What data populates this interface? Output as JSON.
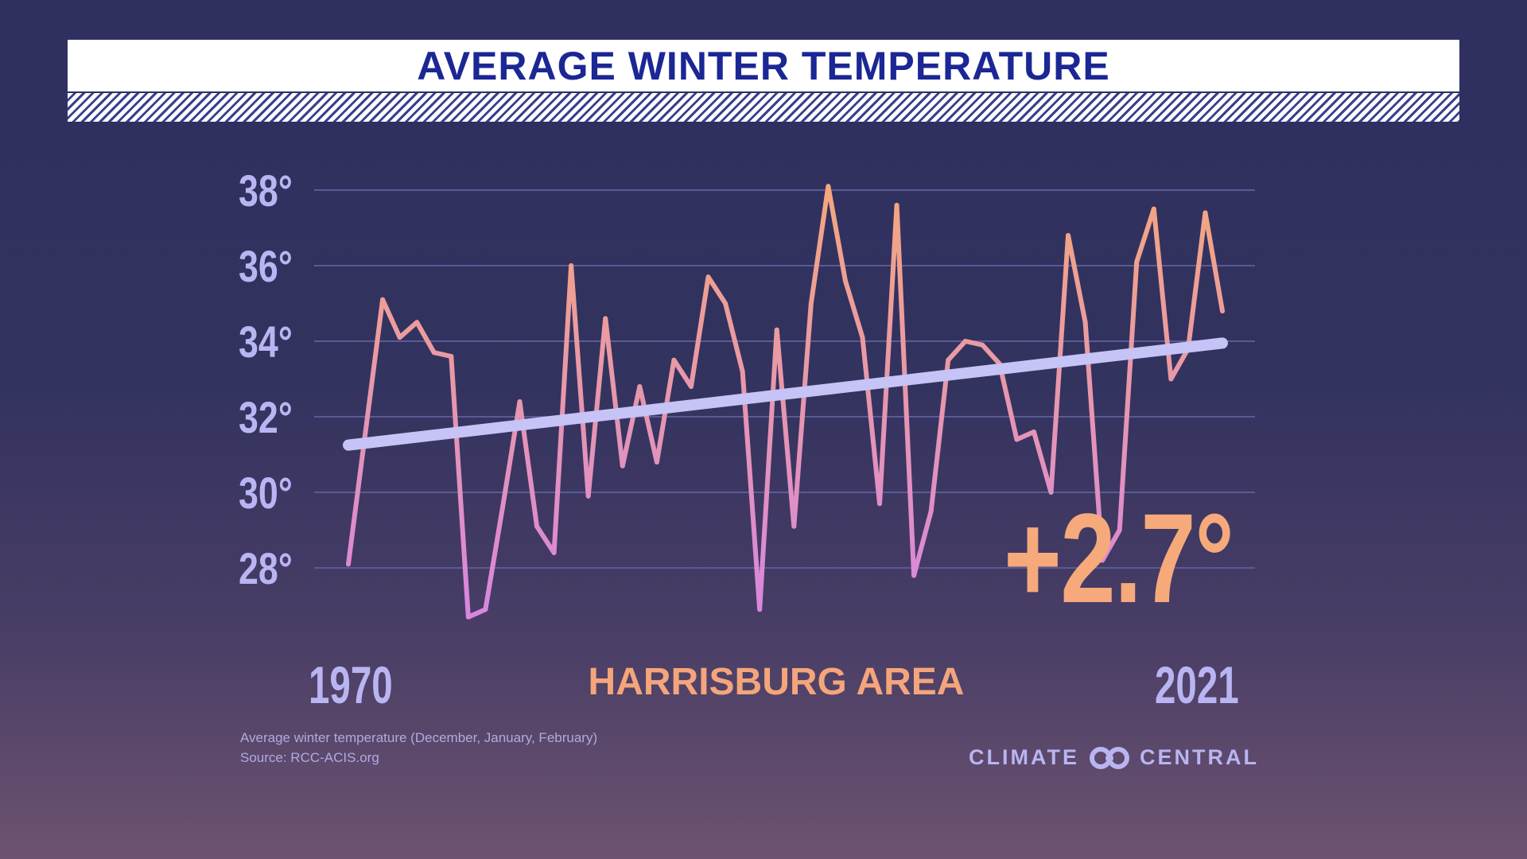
{
  "header": {
    "title": "AVERAGE WINTER TEMPERATURE"
  },
  "chart_data": {
    "type": "line",
    "title": "AVERAGE WINTER TEMPERATURE",
    "subtitle": "HARRISBURG AREA",
    "xlabel": "",
    "ylabel": "",
    "x_start_label": "1970",
    "x_end_label": "2021",
    "ylim": [
      28,
      38
    ],
    "y_ticks": [
      38,
      36,
      34,
      32,
      30,
      28
    ],
    "y_tick_labels": [
      "38°",
      "36°",
      "34°",
      "32°",
      "30°",
      "28°"
    ],
    "grid": true,
    "x": [
      1970,
      1971,
      1972,
      1973,
      1974,
      1975,
      1976,
      1977,
      1978,
      1979,
      1980,
      1981,
      1982,
      1983,
      1984,
      1985,
      1986,
      1987,
      1988,
      1989,
      1990,
      1991,
      1992,
      1993,
      1994,
      1995,
      1996,
      1997,
      1998,
      1999,
      2000,
      2001,
      2002,
      2003,
      2004,
      2005,
      2006,
      2007,
      2008,
      2009,
      2010,
      2011,
      2012,
      2013,
      2014,
      2015,
      2016,
      2017,
      2018,
      2019,
      2020,
      2021
    ],
    "series": [
      {
        "name": "Average winter temperature",
        "values": [
          28.1,
          31.6,
          35.1,
          34.1,
          34.5,
          33.7,
          33.6,
          26.7,
          26.9,
          29.6,
          32.4,
          29.1,
          28.4,
          36.0,
          29.9,
          34.6,
          30.7,
          32.8,
          30.8,
          33.5,
          32.8,
          35.7,
          35.0,
          33.2,
          26.9,
          34.3,
          29.1,
          35.0,
          38.1,
          35.6,
          34.1,
          29.7,
          37.6,
          27.8,
          29.5,
          33.5,
          34.0,
          33.9,
          33.4,
          31.4,
          31.6,
          30.0,
          36.8,
          34.5,
          28.2,
          29.0,
          36.1,
          37.5,
          33.0,
          33.8,
          37.4,
          34.8
        ]
      },
      {
        "name": "Trend",
        "values_endpoints": [
          31.25,
          33.95
        ]
      }
    ],
    "annotation": "+2.7°",
    "colors": {
      "line_top": "#f5a77c",
      "line_bottom": "#d886e0",
      "trend": "#c6c3f6",
      "grid": "#5b5a95",
      "axis_label": "#b9b5f2"
    }
  },
  "footer": {
    "note": "Average winter temperature (December, January, February)",
    "source": "Source: RCC-ACIS.org",
    "logo_left": "CLIMATE",
    "logo_right": "CENTRAL"
  }
}
